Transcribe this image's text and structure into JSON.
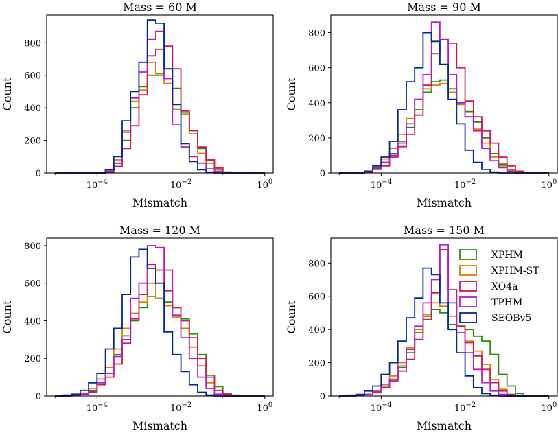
{
  "colors": {
    "XPHM": "#2e8b00",
    "XPHM-ST": "#d98200",
    "XO4a": "#cc1a55",
    "TPHM": "#b31fc2",
    "SEOBv5": "#002896"
  },
  "legend": {
    "placement": "top-right of bottom-right panel",
    "entries": [
      "XPHM",
      "XPHM-ST",
      "XO4a",
      "TPHM",
      "SEOBv5"
    ]
  },
  "chart_data": [
    {
      "type": "histogram",
      "title": "Mass = 60 M",
      "xlabel": "Mismatch",
      "ylabel": "Count",
      "xscale": "log",
      "xlim_log10": [
        -5.2,
        0.2
      ],
      "ylim": [
        0,
        970
      ],
      "yticks": [
        0,
        200,
        400,
        600,
        800
      ],
      "xtick_labels": [
        {
          "exp": -4,
          "label": "10",
          "sup": "−4"
        },
        {
          "exp": -2,
          "label": "10",
          "sup": "−2"
        },
        {
          "exp": 0,
          "label": "10",
          "sup": "0"
        }
      ],
      "bin_edges_log10": [
        -5.0,
        -4.8,
        -4.6,
        -4.4,
        -4.2,
        -4.0,
        -3.8,
        -3.6,
        -3.4,
        -3.2,
        -3.0,
        -2.8,
        -2.6,
        -2.4,
        -2.2,
        -2.0,
        -1.8,
        -1.6,
        -1.4,
        -1.2,
        -1.0,
        -0.8,
        -0.6,
        -0.4,
        -0.2,
        0.0
      ],
      "series": [
        {
          "name": "XPHM",
          "values": [
            0,
            0,
            0,
            0,
            0,
            0,
            10,
            60,
            200,
            400,
            530,
            600,
            600,
            640,
            520,
            370,
            260,
            150,
            80,
            30,
            5,
            0,
            0,
            0,
            0
          ]
        },
        {
          "name": "XPHM-ST",
          "values": [
            0,
            0,
            0,
            0,
            0,
            0,
            15,
            80,
            260,
            440,
            510,
            680,
            610,
            550,
            390,
            360,
            240,
            120,
            60,
            20,
            5,
            0,
            0,
            0,
            0
          ]
        },
        {
          "name": "XO4a",
          "values": [
            0,
            0,
            0,
            0,
            0,
            0,
            5,
            40,
            150,
            290,
            480,
            720,
            760,
            780,
            640,
            380,
            260,
            160,
            80,
            30,
            5,
            0,
            0,
            0,
            0
          ]
        },
        {
          "name": "TPHM",
          "values": [
            0,
            0,
            0,
            0,
            0,
            0,
            10,
            60,
            250,
            460,
            620,
            820,
            870,
            580,
            300,
            160,
            100,
            60,
            25,
            10,
            0,
            0,
            0,
            0,
            0
          ]
        },
        {
          "name": "SEOBv5",
          "values": [
            0,
            0,
            0,
            0,
            0,
            0,
            20,
            100,
            320,
            500,
            680,
            940,
            920,
            640,
            420,
            180,
            70,
            20,
            5,
            0,
            0,
            0,
            0,
            0,
            0
          ]
        }
      ]
    },
    {
      "type": "histogram",
      "title": "Mass = 90 M",
      "xlabel": "Mismatch",
      "ylabel": "Count",
      "xscale": "log",
      "xlim_log10": [
        -5.2,
        0.2
      ],
      "ylim": [
        0,
        900
      ],
      "yticks": [
        0,
        200,
        400,
        600,
        800
      ],
      "xtick_labels": [
        {
          "exp": -4,
          "label": "10",
          "sup": "−4"
        },
        {
          "exp": -2,
          "label": "10",
          "sup": "−2"
        },
        {
          "exp": 0,
          "label": "10",
          "sup": "0"
        }
      ],
      "bin_edges_log10": [
        -5.0,
        -4.8,
        -4.6,
        -4.4,
        -4.2,
        -4.0,
        -3.8,
        -3.6,
        -3.4,
        -3.2,
        -3.0,
        -2.8,
        -2.6,
        -2.4,
        -2.2,
        -2.0,
        -1.8,
        -1.6,
        -1.4,
        -1.2,
        -1.0,
        -0.8,
        -0.6,
        -0.4,
        -0.2,
        0.0
      ],
      "series": [
        {
          "name": "XPHM",
          "values": [
            0,
            0,
            0,
            10,
            30,
            60,
            110,
            180,
            260,
            360,
            460,
            520,
            530,
            480,
            400,
            350,
            290,
            200,
            110,
            50,
            20,
            5,
            0,
            0,
            0
          ]
        },
        {
          "name": "XPHM-ST",
          "values": [
            0,
            0,
            0,
            10,
            40,
            80,
            140,
            220,
            310,
            420,
            480,
            500,
            510,
            460,
            390,
            320,
            250,
            170,
            90,
            40,
            15,
            5,
            0,
            0,
            0
          ]
        },
        {
          "name": "XO4a",
          "values": [
            0,
            0,
            0,
            5,
            20,
            40,
            90,
            150,
            220,
            330,
            500,
            680,
            760,
            740,
            600,
            410,
            320,
            240,
            170,
            90,
            40,
            10,
            0,
            0,
            0
          ]
        },
        {
          "name": "TPHM",
          "values": [
            0,
            0,
            0,
            5,
            25,
            60,
            100,
            170,
            280,
            420,
            560,
            860,
            760,
            560,
            400,
            320,
            240,
            140,
            70,
            30,
            10,
            0,
            0,
            0,
            0
          ]
        },
        {
          "name": "SEOBv5",
          "values": [
            0,
            0,
            0,
            10,
            40,
            90,
            180,
            360,
            520,
            600,
            800,
            750,
            620,
            420,
            280,
            130,
            60,
            20,
            5,
            0,
            0,
            0,
            0,
            0,
            0
          ]
        }
      ]
    },
    {
      "type": "histogram",
      "title": "Mass = 120 M",
      "xlabel": "Mismatch",
      "ylabel": "Count",
      "xscale": "log",
      "xlim_log10": [
        -5.2,
        0.2
      ],
      "ylim": [
        0,
        840
      ],
      "yticks": [
        0,
        200,
        400,
        600,
        800
      ],
      "xtick_labels": [
        {
          "exp": -4,
          "label": "10",
          "sup": "−4"
        },
        {
          "exp": -2,
          "label": "10",
          "sup": "−2"
        },
        {
          "exp": 0,
          "label": "10",
          "sup": "0"
        }
      ],
      "bin_edges_log10": [
        -5.0,
        -4.8,
        -4.6,
        -4.4,
        -4.2,
        -4.0,
        -3.8,
        -3.6,
        -3.4,
        -3.2,
        -3.0,
        -2.8,
        -2.6,
        -2.4,
        -2.2,
        -2.0,
        -1.8,
        -1.6,
        -1.4,
        -1.2,
        -1.0,
        -0.8,
        -0.6,
        -0.4,
        -0.2,
        0.0
      ],
      "series": [
        {
          "name": "XPHM",
          "values": [
            0,
            0,
            5,
            10,
            25,
            60,
            120,
            220,
            320,
            400,
            470,
            530,
            520,
            500,
            470,
            410,
            330,
            220,
            110,
            50,
            15,
            5,
            0,
            0,
            0
          ]
        },
        {
          "name": "XPHM-ST",
          "values": [
            0,
            0,
            5,
            15,
            40,
            90,
            150,
            250,
            360,
            440,
            500,
            600,
            520,
            480,
            420,
            360,
            260,
            160,
            70,
            30,
            10,
            0,
            0,
            0,
            0
          ]
        },
        {
          "name": "XO4a",
          "values": [
            0,
            0,
            5,
            10,
            20,
            60,
            100,
            170,
            280,
            410,
            540,
            700,
            670,
            560,
            470,
            400,
            310,
            200,
            100,
            30,
            10,
            0,
            0,
            0,
            0
          ]
        },
        {
          "name": "TPHM",
          "values": [
            0,
            0,
            5,
            10,
            30,
            70,
            120,
            210,
            300,
            520,
            600,
            800,
            790,
            670,
            430,
            310,
            200,
            100,
            40,
            10,
            0,
            0,
            0,
            0,
            0
          ]
        },
        {
          "name": "SEOBv5",
          "values": [
            0,
            5,
            10,
            30,
            70,
            120,
            250,
            360,
            540,
            740,
            780,
            680,
            600,
            340,
            220,
            130,
            60,
            20,
            5,
            0,
            0,
            0,
            0,
            0,
            0
          ]
        }
      ]
    },
    {
      "type": "histogram",
      "title": "Mass = 150 M",
      "xlabel": "Mismatch",
      "ylabel": "Count",
      "xscale": "log",
      "xlim_log10": [
        -5.2,
        0.2
      ],
      "ylim": [
        0,
        950
      ],
      "yticks": [
        0,
        200,
        400,
        600,
        800
      ],
      "xtick_labels": [
        {
          "exp": -4,
          "label": "10",
          "sup": "−4"
        },
        {
          "exp": -2,
          "label": "10",
          "sup": "−2"
        },
        {
          "exp": 0,
          "label": "10",
          "sup": "0"
        }
      ],
      "bin_edges_log10": [
        -5.0,
        -4.8,
        -4.6,
        -4.4,
        -4.2,
        -4.0,
        -3.8,
        -3.6,
        -3.4,
        -3.2,
        -3.0,
        -2.8,
        -2.6,
        -2.4,
        -2.2,
        -2.0,
        -1.8,
        -1.6,
        -1.4,
        -1.2,
        -1.0,
        -0.8,
        -0.6,
        -0.4,
        -0.2,
        0.0
      ],
      "series": [
        {
          "name": "XPHM",
          "values": [
            0,
            0,
            5,
            10,
            25,
            60,
            100,
            170,
            260,
            380,
            480,
            520,
            500,
            430,
            420,
            400,
            360,
            330,
            250,
            130,
            60,
            15,
            0,
            0,
            0
          ]
        },
        {
          "name": "XPHM-ST",
          "values": [
            0,
            0,
            5,
            10,
            30,
            70,
            120,
            200,
            290,
            400,
            490,
            560,
            540,
            480,
            420,
            330,
            270,
            190,
            100,
            40,
            10,
            0,
            0,
            0,
            0
          ]
        },
        {
          "name": "XO4a",
          "values": [
            0,
            0,
            5,
            10,
            20,
            50,
            90,
            150,
            220,
            340,
            460,
            620,
            880,
            640,
            420,
            320,
            240,
            160,
            80,
            30,
            10,
            0,
            0,
            0,
            0
          ]
        },
        {
          "name": "TPHM",
          "values": [
            0,
            0,
            5,
            10,
            25,
            60,
            100,
            180,
            280,
            420,
            560,
            700,
            910,
            560,
            380,
            260,
            160,
            80,
            30,
            10,
            0,
            0,
            0,
            0,
            0
          ]
        },
        {
          "name": "SEOBv5",
          "values": [
            0,
            5,
            10,
            30,
            60,
            130,
            200,
            330,
            470,
            590,
            770,
            730,
            560,
            400,
            260,
            120,
            50,
            15,
            5,
            0,
            0,
            0,
            0,
            0,
            0
          ]
        }
      ]
    }
  ]
}
